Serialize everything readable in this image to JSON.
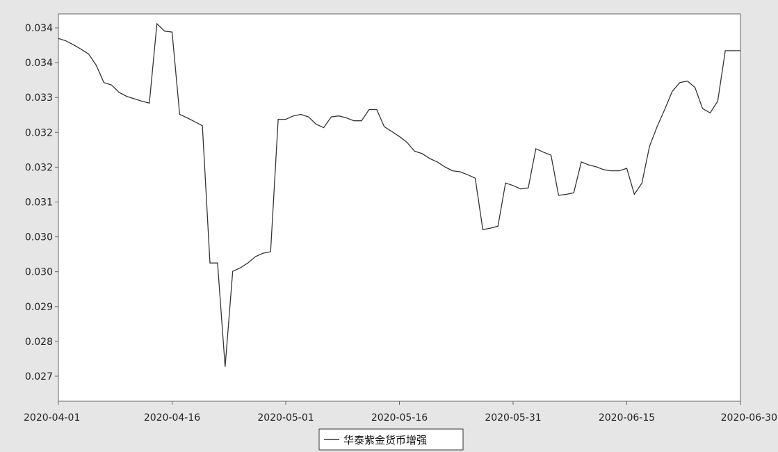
{
  "colors": {
    "background": "#e6e6e6",
    "plot_background": "#ffffff",
    "frame": "#666666",
    "line": "#333333",
    "legend_border": "#333333"
  },
  "chart_data": {
    "type": "line",
    "title": "",
    "xlabel": "",
    "ylabel": "",
    "grid": false,
    "legend_position": "bottom-center",
    "x_ticks": [
      "2020-04-01",
      "2020-04-16",
      "2020-05-01",
      "2020-05-16",
      "2020-05-31",
      "2020-06-15",
      "2020-06-30"
    ],
    "y_ticks": [
      "0.027",
      "0.028",
      "0.029",
      "0.030",
      "0.030",
      "0.031",
      "0.032",
      "0.032",
      "0.033",
      "0.034",
      "0.034"
    ],
    "ylim": [
      0.0265,
      0.0344
    ],
    "series": [
      {
        "name": "华泰紫金货币增强",
        "x": [
          "2020-04-01",
          "2020-04-02",
          "2020-04-03",
          "2020-04-04",
          "2020-04-05",
          "2020-04-06",
          "2020-04-07",
          "2020-04-08",
          "2020-04-09",
          "2020-04-10",
          "2020-04-11",
          "2020-04-12",
          "2020-04-13",
          "2020-04-14",
          "2020-04-15",
          "2020-04-16",
          "2020-04-17",
          "2020-04-18",
          "2020-04-19",
          "2020-04-20",
          "2020-04-21",
          "2020-04-22",
          "2020-04-23",
          "2020-04-24",
          "2020-04-25",
          "2020-04-26",
          "2020-04-27",
          "2020-04-28",
          "2020-04-29",
          "2020-04-30",
          "2020-05-01",
          "2020-05-02",
          "2020-05-03",
          "2020-05-04",
          "2020-05-05",
          "2020-05-06",
          "2020-05-07",
          "2020-05-08",
          "2020-05-09",
          "2020-05-10",
          "2020-05-11",
          "2020-05-12",
          "2020-05-13",
          "2020-05-14",
          "2020-05-15",
          "2020-05-16",
          "2020-05-17",
          "2020-05-18",
          "2020-05-19",
          "2020-05-20",
          "2020-05-21",
          "2020-05-22",
          "2020-05-23",
          "2020-05-24",
          "2020-05-25",
          "2020-05-26",
          "2020-05-27",
          "2020-05-28",
          "2020-05-29",
          "2020-05-30",
          "2020-05-31",
          "2020-06-01",
          "2020-06-02",
          "2020-06-03",
          "2020-06-04",
          "2020-06-05",
          "2020-06-06",
          "2020-06-07",
          "2020-06-08",
          "2020-06-09",
          "2020-06-10",
          "2020-06-11",
          "2020-06-12",
          "2020-06-13",
          "2020-06-14",
          "2020-06-15",
          "2020-06-16",
          "2020-06-17",
          "2020-06-18",
          "2020-06-19",
          "2020-06-20",
          "2020-06-21",
          "2020-06-22",
          "2020-06-23",
          "2020-06-24",
          "2020-06-25",
          "2020-06-26",
          "2020-06-27",
          "2020-06-28",
          "2020-06-29",
          "2020-06-30"
        ],
        "values": [
          0.0339,
          0.03385,
          0.03377,
          0.03368,
          0.03358,
          0.03335,
          0.033,
          0.03295,
          0.0328,
          0.03272,
          0.03267,
          0.03262,
          0.03258,
          0.0342,
          0.03405,
          0.03403,
          0.03235,
          0.03228,
          0.0322,
          0.03212,
          0.02932,
          0.02932,
          0.0272,
          0.02915,
          0.02922,
          0.02932,
          0.02945,
          0.02952,
          0.02955,
          0.03225,
          0.03225,
          0.03232,
          0.03235,
          0.0323,
          0.03215,
          0.03208,
          0.0323,
          0.03232,
          0.03228,
          0.03222,
          0.03222,
          0.03245,
          0.03245,
          0.0321,
          0.032,
          0.0319,
          0.03178,
          0.0316,
          0.03155,
          0.03145,
          0.03138,
          0.03128,
          0.0312,
          0.03118,
          0.03112,
          0.03105,
          0.03,
          0.03003,
          0.03007,
          0.03095,
          0.0309,
          0.03083,
          0.03085,
          0.03165,
          0.03158,
          0.03152,
          0.0307,
          0.03072,
          0.03075,
          0.03138,
          0.03132,
          0.03128,
          0.03122,
          0.0312,
          0.0312,
          0.03125,
          0.03072,
          0.03095,
          0.0317,
          0.0321,
          0.03245,
          0.03282,
          0.033,
          0.03303,
          0.0329,
          0.03247,
          0.03238,
          0.03262,
          0.03365,
          0.03365,
          0.03365
        ]
      }
    ]
  }
}
